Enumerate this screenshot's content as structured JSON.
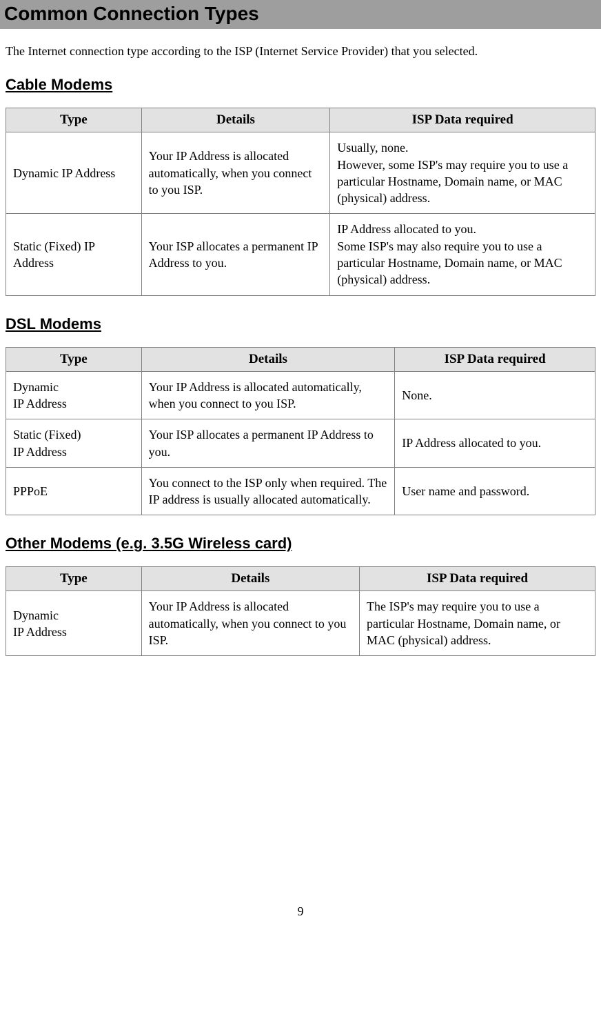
{
  "page": {
    "title": "Common Connection Types",
    "intro": "The Internet connection type according to the ISP (Internet Service Provider) that you selected.",
    "page_number": "9"
  },
  "sections": {
    "cable": {
      "heading": "Cable Modems",
      "columns": {
        "c1": "Type",
        "c2": "Details",
        "c3": "ISP Data required"
      },
      "col_widths": [
        "23%",
        "32%",
        "45%"
      ],
      "rows": {
        "r1": {
          "type": "Dynamic IP Address",
          "details": "Your IP Address is allocated automatically, when you connect to you ISP.",
          "isp_line1": "Usually, none.",
          "isp_line2": "However, some ISP's may require you to use a particular Hostname, Domain name, or MAC (physical) address."
        },
        "r2": {
          "type": "Static (Fixed) IP Address",
          "details": "Your ISP allocates a permanent IP Address to you.",
          "isp_line1": "IP Address allocated to you.",
          "isp_line2": "Some ISP's may also require you to use a particular Hostname, Domain name, or MAC (physical) address."
        }
      }
    },
    "dsl": {
      "heading": "DSL Modems",
      "columns": {
        "c1": "Type",
        "c2": "Details",
        "c3": "ISP Data required"
      },
      "col_widths": [
        "23%",
        "43%",
        "34%"
      ],
      "rows": {
        "r1": {
          "type_l1": "Dynamic",
          "type_l2": "IP Address",
          "details": "Your IP Address is allocated automatically, when you connect to you ISP.",
          "isp": "None."
        },
        "r2": {
          "type_l1": "Static (Fixed)",
          "type_l2": "IP Address",
          "details": "Your ISP allocates a permanent IP Address to you.",
          "isp": "IP Address allocated to you."
        },
        "r3": {
          "type_l1": "PPPoE",
          "type_l2": "",
          "details": "You connect to the ISP only when required. The IP address is usually allocated automatically.",
          "isp": "User name and password."
        }
      }
    },
    "other": {
      "heading": "Other Modems (e.g. 3.5G Wireless card)",
      "columns": {
        "c1": "Type",
        "c2": "Details",
        "c3": "ISP Data required"
      },
      "col_widths": [
        "23%",
        "37%",
        "40%"
      ],
      "rows": {
        "r1": {
          "type_l1": "Dynamic",
          "type_l2": "IP Address",
          "details": "Your IP Address is allocated automatically, when you connect to you ISP.",
          "isp": "The ISP's may require you to use a particular Hostname, Domain name, or MAC (physical) address."
        }
      }
    }
  },
  "styling": {
    "title_bg": "#9e9e9e",
    "header_bg": "#e2e2e2",
    "border_color": "#808080",
    "body_font": "Times New Roman",
    "heading_font": "Arial",
    "title_font": "Verdana",
    "title_fontsize": 28,
    "heading_fontsize": 22,
    "body_fontsize": 18
  }
}
